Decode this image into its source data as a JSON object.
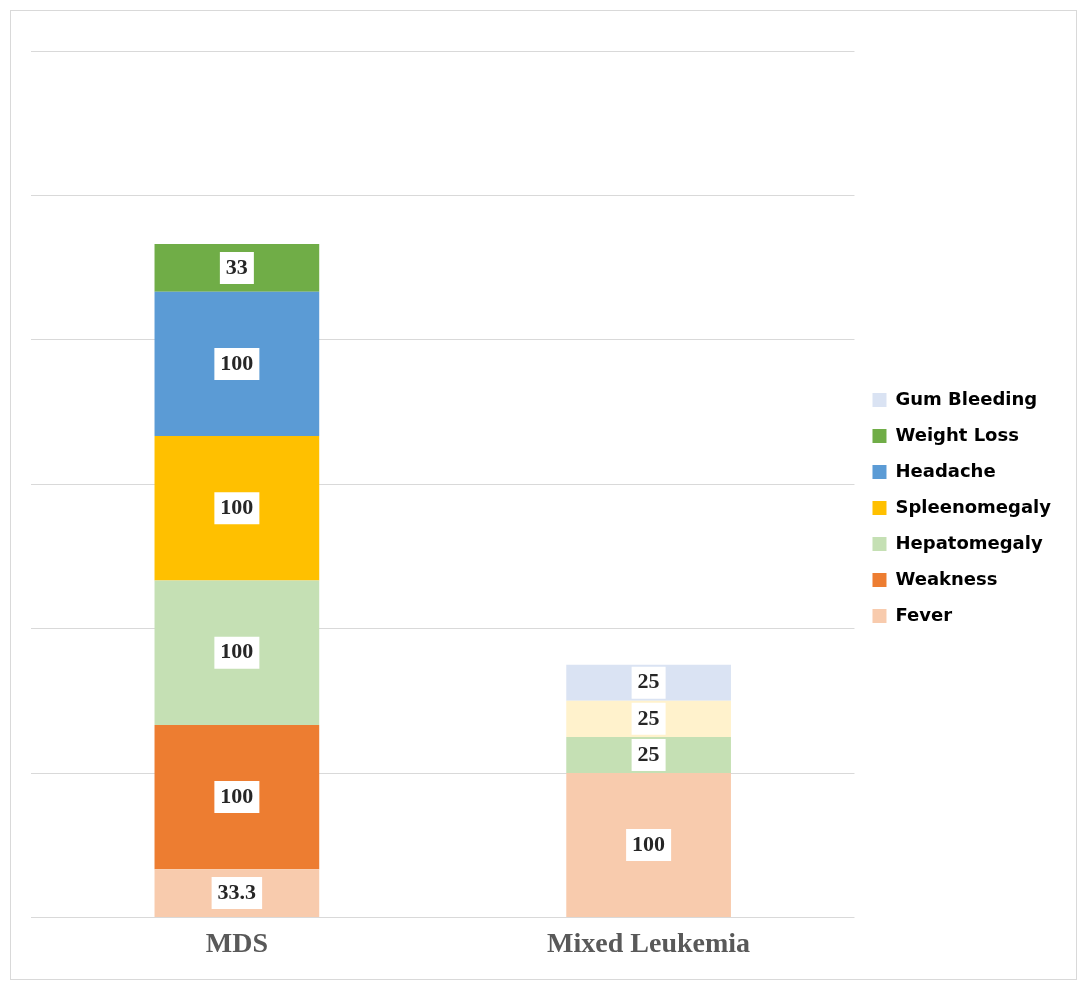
{
  "chart_data": {
    "type": "bar",
    "stacked": true,
    "categories": [
      "MDS",
      "Mixed Leukemia"
    ],
    "series": [
      {
        "name": "Fever",
        "color": "#f8cbad",
        "values": [
          33.3,
          100
        ]
      },
      {
        "name": "Weakness",
        "color": "#ed7d31",
        "values": [
          100,
          null
        ]
      },
      {
        "name": "Hepatomegaly",
        "color": "#c5e0b4",
        "values": [
          100,
          25
        ]
      },
      {
        "name": "Spleenomegaly",
        "color": "#ffc000",
        "colors": [
          "#ffc000",
          "#fff2cc"
        ],
        "values": [
          100,
          25
        ]
      },
      {
        "name": "Headache",
        "color": "#5b9bd5",
        "values": [
          100,
          null
        ]
      },
      {
        "name": "Weight Loss",
        "color": "#70ad47",
        "values": [
          33,
          null
        ]
      },
      {
        "name": "Gum Bleeding",
        "color": "#dae3f3",
        "values": [
          null,
          25
        ]
      }
    ],
    "ylim": [
      0,
      600
    ],
    "tick_labels": "x",
    "grid": "y",
    "legend": "right",
    "data_labels": true
  }
}
